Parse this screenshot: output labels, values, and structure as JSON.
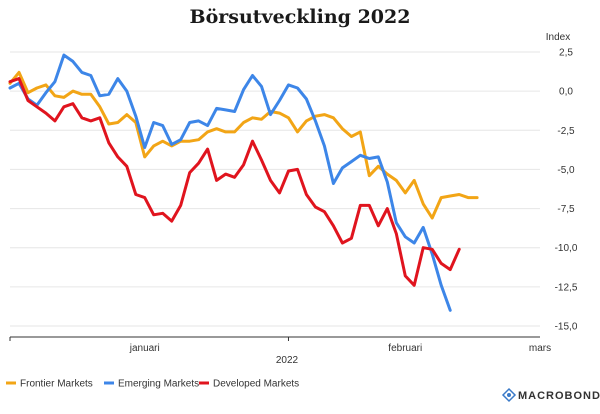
{
  "chart_data": {
    "type": "line",
    "title": "Börsutveckling 2022",
    "ylabel": "Index",
    "xlabel": "2022",
    "ylim": [
      -15,
      2.5
    ],
    "yticks": [
      2.5,
      0,
      -2.5,
      -5,
      -7.5,
      -10,
      -12.5,
      -15
    ],
    "ytick_labels": [
      "2,5",
      "0,0",
      "-2,5",
      "-5,0",
      "-7,5",
      "-10,0",
      "-12,5",
      "-15,0"
    ],
    "x_domain": [
      "2022-01-01",
      "2022-03-01"
    ],
    "xtick_labels": [
      {
        "label": "januari",
        "date": "2022-01-16"
      },
      {
        "label": "februari",
        "date": "2022-02-14"
      },
      {
        "label": "mars",
        "date": "2022-03-01"
      }
    ],
    "x": [
      "2022-01-01",
      "2022-01-02",
      "2022-01-03",
      "2022-01-04",
      "2022-01-05",
      "2022-01-06",
      "2022-01-07",
      "2022-01-08",
      "2022-01-09",
      "2022-01-10",
      "2022-01-11",
      "2022-01-12",
      "2022-01-13",
      "2022-01-14",
      "2022-01-15",
      "2022-01-16",
      "2022-01-17",
      "2022-01-18",
      "2022-01-19",
      "2022-01-20",
      "2022-01-21",
      "2022-01-22",
      "2022-01-23",
      "2022-01-24",
      "2022-01-25",
      "2022-01-26",
      "2022-01-27",
      "2022-01-28",
      "2022-01-29",
      "2022-01-30",
      "2022-01-31",
      "2022-02-01",
      "2022-02-02",
      "2022-02-03",
      "2022-02-04",
      "2022-02-05",
      "2022-02-06",
      "2022-02-07",
      "2022-02-08",
      "2022-02-09",
      "2022-02-10",
      "2022-02-11",
      "2022-02-12",
      "2022-02-13",
      "2022-02-14",
      "2022-02-15",
      "2022-02-16",
      "2022-02-17",
      "2022-02-18",
      "2022-02-19",
      "2022-02-20",
      "2022-02-21",
      "2022-02-22",
      "2022-02-23",
      "2022-02-24",
      "2022-02-25",
      "2022-02-26",
      "2022-02-27"
    ],
    "series": [
      {
        "name": "Frontier Markets",
        "color": "#f2a516",
        "values": [
          0.5,
          1.2,
          -0.1,
          0.2,
          0.4,
          -0.3,
          -0.4,
          0.0,
          -0.2,
          -0.2,
          -1.0,
          -2.1,
          -2.0,
          -1.5,
          -2.0,
          -4.2,
          -3.5,
          -3.2,
          -3.5,
          -3.2,
          -3.2,
          -3.1,
          -2.6,
          -2.4,
          -2.6,
          -2.6,
          -2.0,
          -1.7,
          -1.8,
          -1.3,
          -1.4,
          -1.7,
          -2.6,
          -1.9,
          -1.6,
          -1.5,
          -1.7,
          -2.4,
          -2.9,
          -2.6,
          -5.4,
          -4.8,
          -5.3,
          -5.7,
          -6.5,
          -5.7,
          -7.2,
          -8.1,
          -6.8,
          -6.7,
          -6.6,
          -6.8,
          -6.8,
          null,
          null,
          null,
          null,
          null
        ]
      },
      {
        "name": "Emerging Markets",
        "color": "#3d86e8",
        "values": [
          0.2,
          0.5,
          -0.5,
          -0.9,
          -0.1,
          0.6,
          2.3,
          1.9,
          1.2,
          1.0,
          -0.3,
          -0.2,
          0.8,
          0.0,
          -1.6,
          -3.6,
          -2.0,
          -2.2,
          -3.4,
          -3.1,
          -2.0,
          -1.9,
          -2.2,
          -1.1,
          -1.2,
          -1.3,
          0.1,
          1.0,
          0.3,
          -1.5,
          -0.6,
          0.4,
          0.2,
          -0.5,
          -1.9,
          -3.5,
          -5.9,
          -4.9,
          -4.5,
          -4.1,
          -4.3,
          -4.2,
          -5.8,
          -8.4,
          -9.3,
          -9.7,
          -8.7,
          -10.4,
          -12.4,
          -14.0,
          null,
          null,
          null,
          null,
          null,
          null,
          null,
          null
        ]
      },
      {
        "name": "Developed Markets",
        "color": "#e0141e",
        "values": [
          0.6,
          0.8,
          -0.6,
          -1.0,
          -1.4,
          -1.9,
          -1.0,
          -0.8,
          -1.7,
          -1.9,
          -1.7,
          -3.3,
          -4.2,
          -4.8,
          -6.6,
          -6.8,
          -7.9,
          -7.8,
          -8.3,
          -7.3,
          -5.2,
          -4.6,
          -3.7,
          -5.7,
          -5.3,
          -5.5,
          -4.7,
          -3.2,
          -4.4,
          -5.7,
          -6.5,
          -5.1,
          -5.0,
          -6.6,
          -7.4,
          -7.7,
          -8.6,
          -9.7,
          -9.4,
          -7.3,
          -7.3,
          -8.6,
          -7.5,
          -9.1,
          -11.8,
          -12.4,
          -10.0,
          -10.1,
          -11.0,
          -11.4,
          -10.1,
          null,
          null,
          null,
          null,
          null,
          null,
          null
        ]
      }
    ],
    "grid": true,
    "legend_position": "bottom-left",
    "source_logo": "MACROBOND"
  }
}
